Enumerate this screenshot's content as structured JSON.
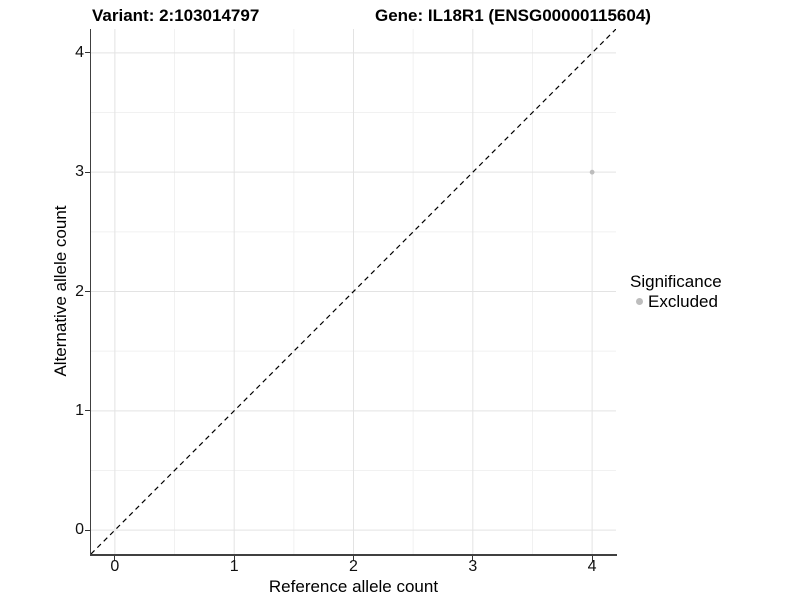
{
  "chart_data": {
    "type": "scatter",
    "titles": {
      "left": "Variant: 2:103014797",
      "right": "Gene: IL18R1 (ENSG00000115604)"
    },
    "xlabel": "Reference allele count",
    "ylabel": "Alternative allele count",
    "xlim": [
      -0.2,
      4.2
    ],
    "ylim": [
      -0.2,
      4.2
    ],
    "xticks": [
      0,
      1,
      2,
      3,
      4
    ],
    "yticks": [
      0,
      1,
      2,
      3,
      4
    ],
    "minor_grid_positions": [
      0.5,
      1.5,
      2.5,
      3.5
    ],
    "grid": {
      "major": true,
      "minor": true
    },
    "reference_line": {
      "kind": "identity",
      "x1": -0.2,
      "y1": -0.2,
      "x2": 4.2,
      "y2": 4.2,
      "style": "dashed",
      "color": "#000000"
    },
    "series": [
      {
        "name": "Excluded",
        "color": "#bdbdbd",
        "point_radius": 2.4,
        "points": [
          [
            4,
            3
          ]
        ]
      }
    ],
    "legend": {
      "title": "Significance",
      "position": "right",
      "entries": [
        {
          "label": "Excluded",
          "color": "#bdbdbd"
        }
      ]
    },
    "colors": {
      "grid_major": "#e3e3e3",
      "grid_minor": "#f1f1f1",
      "axis": "#404040",
      "text": "#000000",
      "background": "#ffffff"
    }
  }
}
